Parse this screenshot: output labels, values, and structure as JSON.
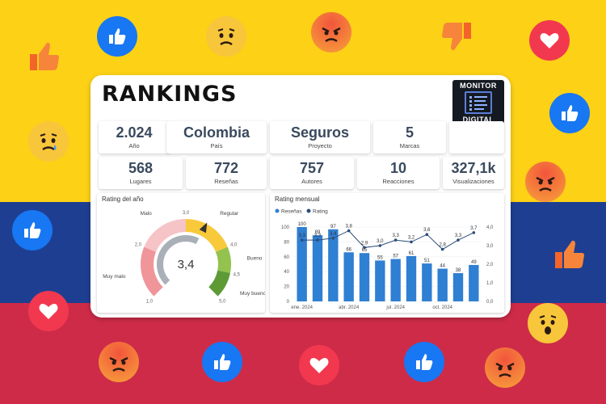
{
  "title": "RANKINGS",
  "logo": {
    "line1": "MONITOR",
    "line2": "DIGITAL"
  },
  "kpis_row1": [
    {
      "value": "2.024",
      "label": "Año"
    },
    {
      "value": "Colombia",
      "label": "País"
    },
    {
      "value": "Seguros",
      "label": "Proyecto"
    },
    {
      "value": "5",
      "label": "Marcas"
    }
  ],
  "kpis_row2": [
    {
      "value": "568",
      "label": "Lugares"
    },
    {
      "value": "772",
      "label": "Reseñas"
    },
    {
      "value": "757",
      "label": "Autores"
    },
    {
      "value": "10",
      "label": "Reacciones"
    },
    {
      "value": "327,1k",
      "label": "Visualizaciones"
    }
  ],
  "gauge": {
    "title": "Rating del año",
    "value_text": "3,4",
    "value": 3.4,
    "min": 1.0,
    "max": 5.0,
    "segments": [
      {
        "label": "Muy malo",
        "from": 1.0,
        "to": 2.0,
        "color": "#f0959a"
      },
      {
        "label": "Malo",
        "from": 2.0,
        "to": 3.0,
        "color": "#f6c3c6"
      },
      {
        "label": "Regular",
        "from": 3.0,
        "to": 4.0,
        "color": "#f8c93a"
      },
      {
        "label": "Bueno",
        "from": 4.0,
        "to": 4.5,
        "color": "#93c24e"
      },
      {
        "label": "Muy bueno",
        "from": 4.5,
        "to": 5.0,
        "color": "#5d9a36"
      }
    ],
    "tick_labels": [
      "1,0",
      "2,0",
      "3,0",
      "4,0",
      "4,5",
      "5,0"
    ]
  },
  "chart_data": {
    "type": "bar",
    "title": "Rating mensual",
    "legend": [
      "Reseñas",
      "Rating"
    ],
    "categories": [
      "ene. 2024",
      "feb. 2024",
      "mar. 2024",
      "abr. 2024",
      "may. 2024",
      "jun. 2024",
      "jul. 2024",
      "ago. 2024",
      "sep. 2024",
      "oct. 2024",
      "nov. 2024",
      "dic. 2024"
    ],
    "x_tick_labels": [
      "ene. 2024",
      "abr. 2024",
      "jul. 2024",
      "oct. 2024"
    ],
    "series": [
      {
        "name": "Reseñas",
        "type": "bar",
        "values": [
          100,
          89,
          97,
          66,
          65,
          55,
          57,
          61,
          51,
          44,
          38,
          49
        ],
        "labels": [
          "100",
          "89",
          "97",
          "66",
          "65",
          "55",
          "57",
          "61",
          "51",
          "44",
          "38",
          "49"
        ]
      },
      {
        "name": "Rating",
        "type": "line",
        "values": [
          3.3,
          3.3,
          3.4,
          3.8,
          2.9,
          3.0,
          3.3,
          3.2,
          3.6,
          2.8,
          3.3,
          3.7
        ],
        "labels": [
          "3,3",
          "3,3",
          "3,4",
          "3,8",
          "2,9",
          "3,0",
          "3,3",
          "3,2",
          "3,6",
          "2,8",
          "3,3",
          "3,7"
        ]
      }
    ],
    "ylim_left": [
      0,
      100
    ],
    "ylim_right": [
      0,
      4
    ],
    "left_ticks": [
      "0",
      "20",
      "40",
      "60",
      "80",
      "100"
    ],
    "right_ticks": [
      "0,0",
      "1,0",
      "2,0",
      "3,0",
      "4,0"
    ],
    "colors": {
      "bar": "#2f7fd2",
      "line": "#2c4d7a"
    }
  },
  "colors": {
    "flag_yellow": "#fcd116",
    "flag_blue": "#1e3f91",
    "flag_red": "#ce2b48"
  },
  "emojis": [
    "like",
    "confused",
    "angry",
    "dislike",
    "love",
    "like",
    "sad",
    "angry",
    "like",
    "like",
    "love",
    "angry",
    "like",
    "love",
    "like",
    "wow",
    "angry"
  ]
}
